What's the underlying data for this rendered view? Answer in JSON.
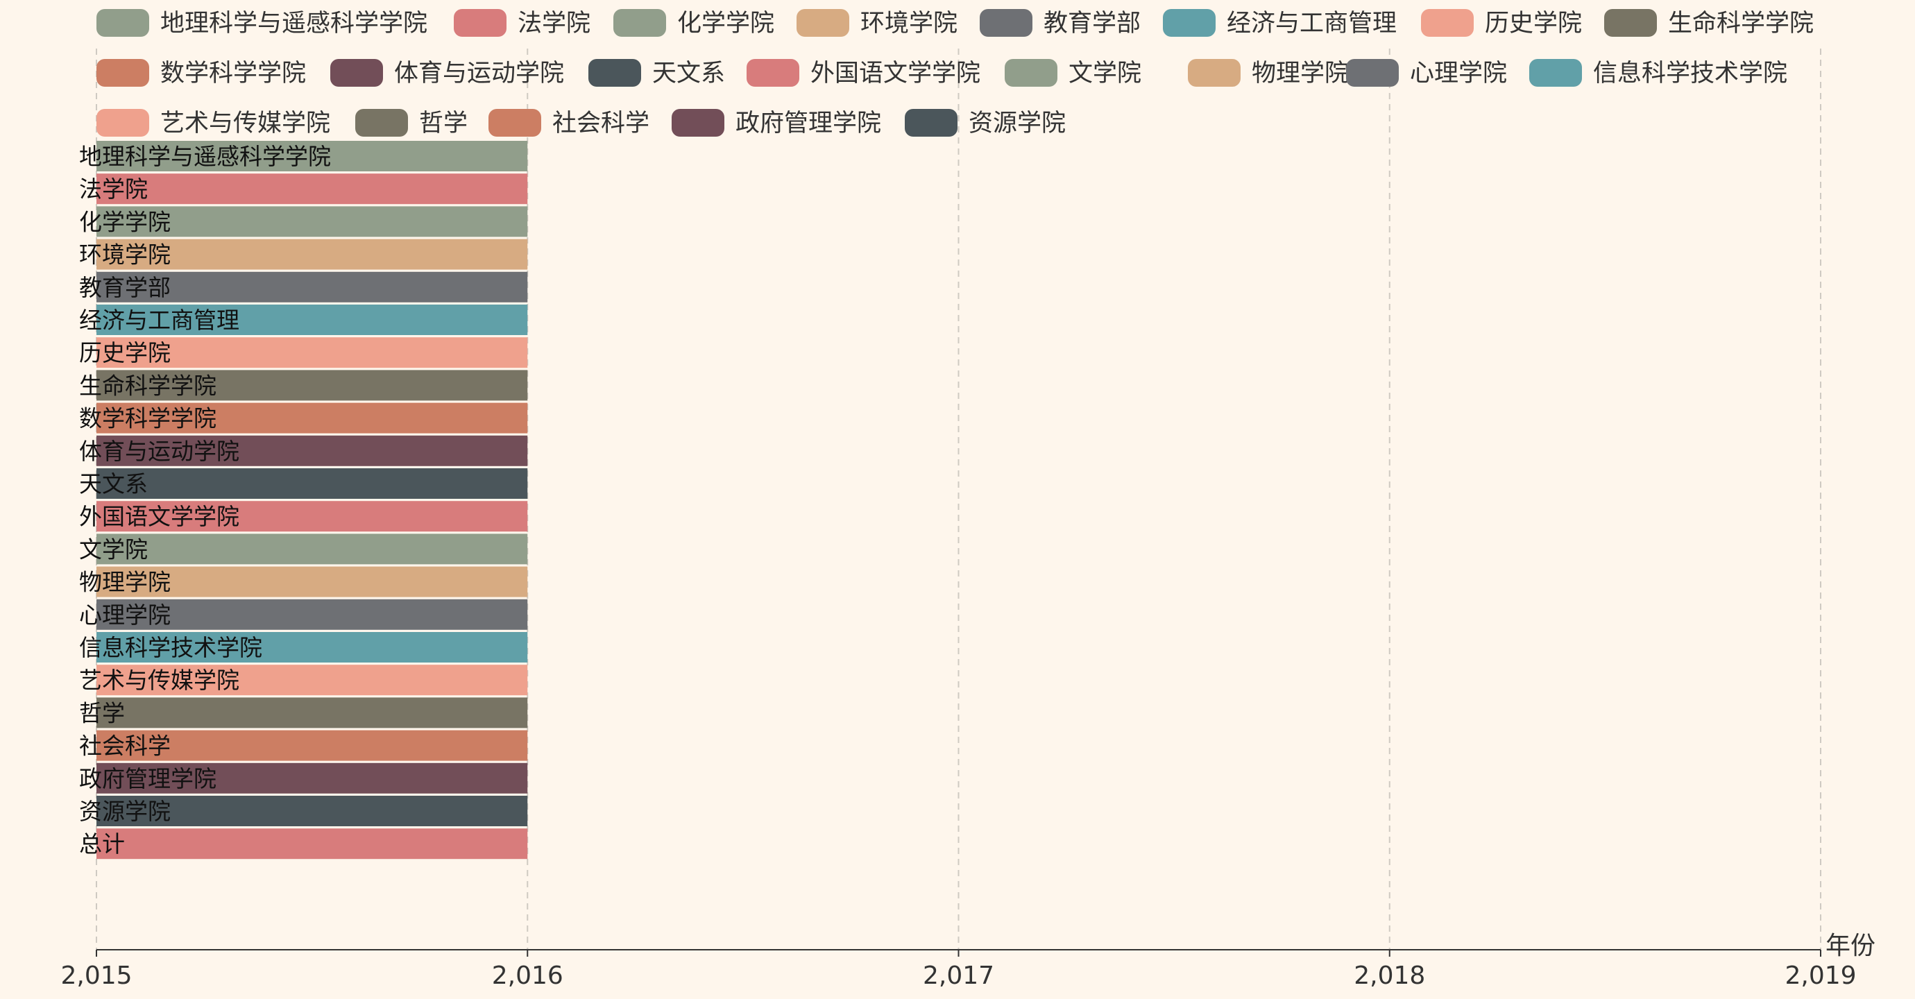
{
  "chart_data": {
    "type": "bar",
    "orientation": "horizontal-range",
    "xlabel": "年份",
    "xlim": [
      2015,
      2019
    ],
    "x_ticks": [
      "2,015",
      "2,016",
      "2,017",
      "2,018",
      "2,019"
    ],
    "grid": true,
    "legend_position": "top",
    "categories": [
      "地理科学与遥感科学学院",
      "法学院",
      "化学学院",
      "环境学院",
      "教育学部",
      "经济与工商管理",
      "历史学院",
      "生命科学学院",
      "数学科学学院",
      "体育与运动学院",
      "天文系",
      "外国语文学学院",
      "文学院",
      "物理学院",
      "心理学院",
      "信息科学技术学院",
      "艺术与传媒学院",
      "哲学",
      "社会科学",
      "政府管理学院",
      "资源学院",
      "总计"
    ],
    "series": [
      {
        "name": "地理科学与遥感科学学院",
        "color": "#919e8b",
        "start": 2015,
        "end": 2016
      },
      {
        "name": "法学院",
        "color": "#d87c7c",
        "start": 2015,
        "end": 2016
      },
      {
        "name": "化学学院",
        "color": "#919e8b",
        "start": 2015,
        "end": 2016
      },
      {
        "name": "环境学院",
        "color": "#d7ab82",
        "start": 2015,
        "end": 2016
      },
      {
        "name": "教育学部",
        "color": "#6e7074",
        "start": 2015,
        "end": 2016
      },
      {
        "name": "经济与工商管理",
        "color": "#61a0a8",
        "start": 2015,
        "end": 2016
      },
      {
        "name": "历史学院",
        "color": "#efa18d",
        "start": 2015,
        "end": 2016
      },
      {
        "name": "生命科学学院",
        "color": "#787464",
        "start": 2015,
        "end": 2016
      },
      {
        "name": "数学科学学院",
        "color": "#cc7e63",
        "start": 2015,
        "end": 2016
      },
      {
        "name": "体育与运动学院",
        "color": "#724e58",
        "start": 2015,
        "end": 2016
      },
      {
        "name": "天文系",
        "color": "#4b565b",
        "start": 2015,
        "end": 2016
      },
      {
        "name": "外国语文学学院",
        "color": "#d87c7c",
        "start": 2015,
        "end": 2016
      },
      {
        "name": "文学院",
        "color": "#919e8b",
        "start": 2015,
        "end": 2016
      },
      {
        "name": "物理学院",
        "color": "#d7ab82",
        "start": 2015,
        "end": 2016
      },
      {
        "name": "心理学院",
        "color": "#6e7074",
        "start": 2015,
        "end": 2016
      },
      {
        "name": "信息科学技术学院",
        "color": "#61a0a8",
        "start": 2015,
        "end": 2016
      },
      {
        "name": "艺术与传媒学院",
        "color": "#efa18d",
        "start": 2015,
        "end": 2016
      },
      {
        "name": "哲学",
        "color": "#787464",
        "start": 2015,
        "end": 2016
      },
      {
        "name": "社会科学",
        "color": "#cc7e63",
        "start": 2015,
        "end": 2016
      },
      {
        "name": "政府管理学院",
        "color": "#724e58",
        "start": 2015,
        "end": 2016
      },
      {
        "name": "资源学院",
        "color": "#4b565b",
        "start": 2015,
        "end": 2016
      },
      {
        "name": "总计",
        "color": "#d87c7c",
        "start": 2015,
        "end": 2016
      }
    ]
  }
}
